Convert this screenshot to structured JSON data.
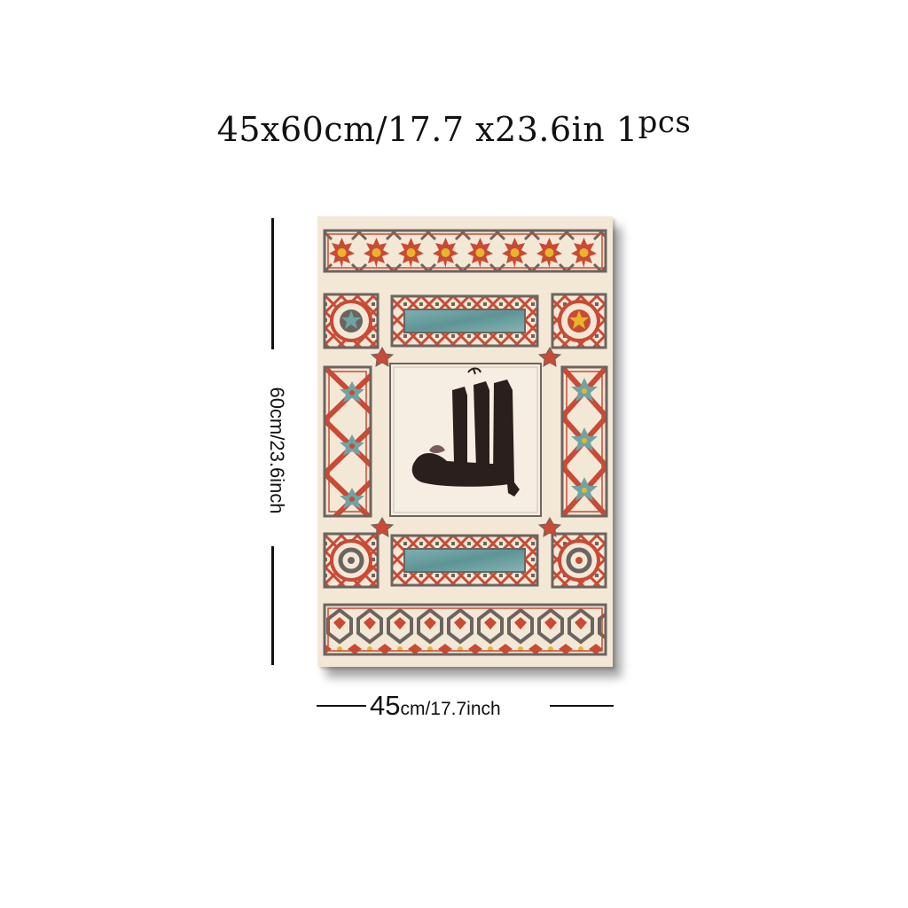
{
  "headline": {
    "size": "45x60cm/17.7 x23.6in",
    "quantity": "1",
    "unit": "pcs"
  },
  "height_label": "60cm/23.6inch",
  "width_label": {
    "value": "45",
    "rest": "cm/17.7inch"
  },
  "poster_artwork": "Islamic geometric pattern panel with calligraphy",
  "colors": {
    "background": "#f3e8d6",
    "red": "#c94a35",
    "gray": "#6b6460",
    "teal": "#6fa3a4",
    "gold": "#e7b52a",
    "ink": "#2a1f1c"
  }
}
